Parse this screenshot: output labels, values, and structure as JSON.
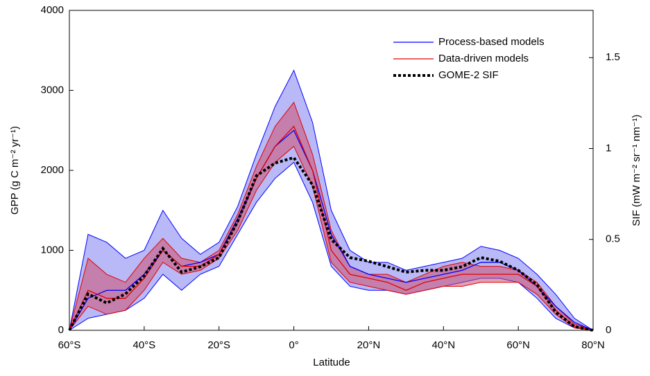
{
  "chart_data": {
    "type": "line",
    "xlabel": "Latitude",
    "ylabel": "GPP (g C m⁻² yr⁻¹)",
    "y2label": "SIF (mW m⁻² sr⁻¹ nm⁻¹)",
    "x": [
      -60,
      -55,
      -50,
      -45,
      -40,
      -35,
      -30,
      -25,
      -20,
      -15,
      -10,
      -5,
      0,
      5,
      10,
      15,
      20,
      25,
      30,
      35,
      40,
      45,
      50,
      55,
      60,
      65,
      70,
      75,
      80
    ],
    "xlim": [
      -60,
      80
    ],
    "xticks": [
      {
        "value": -60,
        "label": "60°S"
      },
      {
        "value": -40,
        "label": "40°S"
      },
      {
        "value": -20,
        "label": "20°S"
      },
      {
        "value": 0,
        "label": "0°"
      },
      {
        "value": 20,
        "label": "20°N"
      },
      {
        "value": 40,
        "label": "40°N"
      },
      {
        "value": 60,
        "label": "60°N"
      },
      {
        "value": 80,
        "label": "80°N"
      }
    ],
    "ylim": [
      0,
      4000
    ],
    "yticks": [
      0,
      1000,
      2000,
      3000,
      4000
    ],
    "y2lim": [
      0,
      1.76
    ],
    "y2ticks": [
      0,
      0.5,
      1,
      1.5
    ],
    "legend": "upper right",
    "series": [
      {
        "name": "Process-based models",
        "color": "#0000ff",
        "band": "#8080f0",
        "values": [
          0,
          400,
          500,
          500,
          700,
          1000,
          800,
          850,
          950,
          1400,
          1900,
          2300,
          2500,
          2000,
          1200,
          800,
          700,
          650,
          600,
          650,
          700,
          750,
          850,
          850,
          750,
          550,
          300,
          100,
          0
        ],
        "lower": [
          0,
          150,
          200,
          250,
          400,
          700,
          500,
          700,
          800,
          1200,
          1600,
          1900,
          2100,
          1600,
          800,
          550,
          500,
          500,
          450,
          500,
          550,
          600,
          650,
          650,
          600,
          400,
          150,
          30,
          0
        ],
        "upper": [
          0,
          1200,
          1100,
          900,
          1000,
          1500,
          1150,
          950,
          1100,
          1550,
          2200,
          2800,
          3250,
          2600,
          1500,
          1000,
          850,
          850,
          750,
          800,
          850,
          900,
          1050,
          1000,
          900,
          700,
          450,
          150,
          0
        ]
      },
      {
        "name": "Data-driven models",
        "color": "#e00000",
        "band": "#d05070",
        "values": [
          0,
          500,
          400,
          400,
          650,
          1000,
          800,
          800,
          950,
          1350,
          1900,
          2300,
          2550,
          2000,
          1000,
          700,
          650,
          600,
          500,
          600,
          650,
          700,
          700,
          700,
          700,
          550,
          250,
          50,
          0
        ],
        "lower": [
          0,
          300,
          200,
          250,
          500,
          850,
          700,
          750,
          900,
          1250,
          1750,
          2100,
          2300,
          1800,
          850,
          600,
          550,
          500,
          450,
          500,
          550,
          550,
          600,
          600,
          600,
          450,
          200,
          30,
          0
        ],
        "upper": [
          0,
          900,
          700,
          600,
          900,
          1150,
          900,
          850,
          1000,
          1450,
          2050,
          2550,
          2850,
          2200,
          1250,
          800,
          700,
          700,
          600,
          700,
          800,
          850,
          800,
          800,
          750,
          600,
          300,
          80,
          0
        ]
      },
      {
        "name": "GOME-2 SIF",
        "color": "#000000",
        "axis": "y2",
        "dashed": true,
        "values": [
          0,
          0.2,
          0.15,
          0.2,
          0.3,
          0.45,
          0.32,
          0.35,
          0.4,
          0.6,
          0.85,
          0.92,
          0.95,
          0.8,
          0.5,
          0.4,
          0.38,
          0.35,
          0.32,
          0.33,
          0.33,
          0.35,
          0.4,
          0.38,
          0.33,
          0.25,
          0.1,
          0.02,
          0
        ]
      }
    ]
  }
}
